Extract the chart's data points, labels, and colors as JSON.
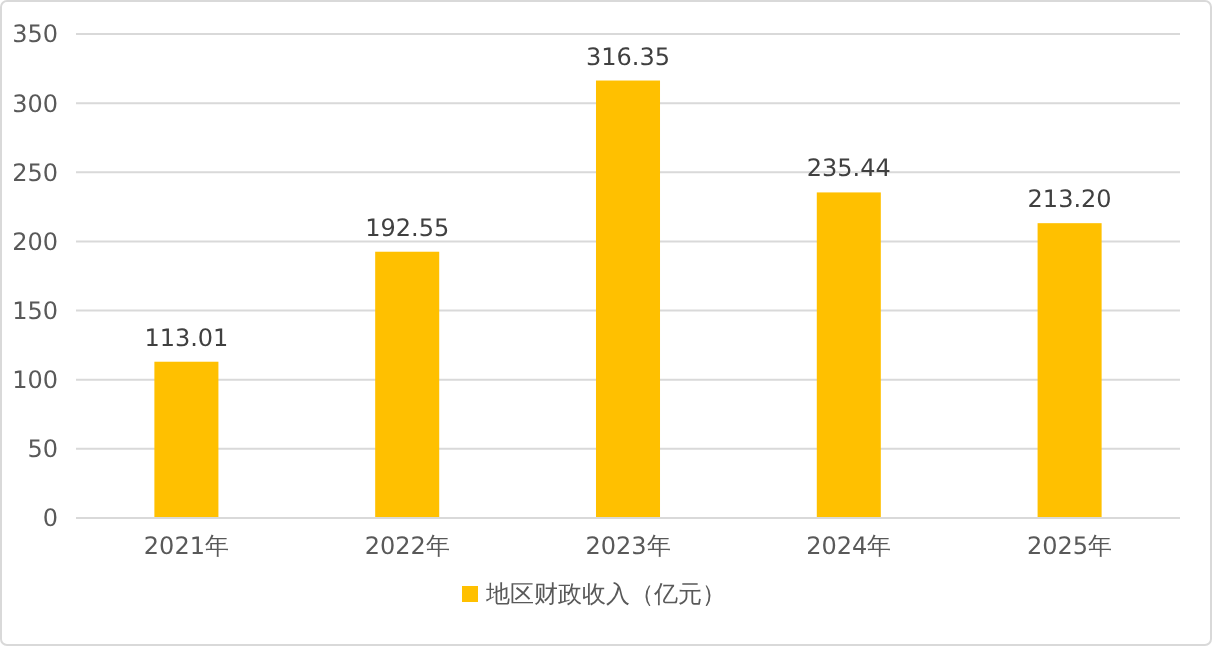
{
  "chart_data": {
    "type": "bar",
    "categories": [
      "2021年",
      "2022年",
      "2023年",
      "2024年",
      "2025年"
    ],
    "series": [
      {
        "name": "地区财政收入（亿元）",
        "color": "#ffc000",
        "values": [
          113.01,
          192.55,
          316.35,
          235.44,
          213.2
        ]
      }
    ],
    "value_labels": [
      "113.01",
      "192.55",
      "316.35",
      "235.44",
      "213.20"
    ],
    "ylim": [
      0,
      350
    ],
    "yticks": [
      0,
      50,
      100,
      150,
      200,
      250,
      300,
      350
    ],
    "grid": "y",
    "legend": "bottom"
  }
}
